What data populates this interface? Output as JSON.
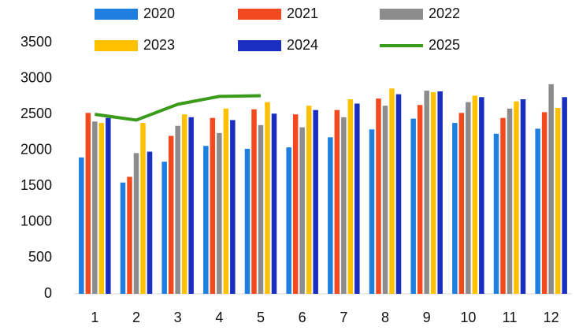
{
  "chart_data": {
    "type": "bar",
    "categories": [
      "1",
      "2",
      "3",
      "4",
      "5",
      "6",
      "7",
      "8",
      "9",
      "10",
      "11",
      "12"
    ],
    "series": [
      {
        "name": "2020",
        "color": "#1f7fe0",
        "values": [
          1900,
          1550,
          1840,
          2060,
          2020,
          2040,
          2180,
          2290,
          2440,
          2380,
          2230,
          2300
        ]
      },
      {
        "name": "2021",
        "color": "#f24a1e",
        "values": [
          2520,
          1630,
          2200,
          2450,
          2570,
          2500,
          2560,
          2720,
          2630,
          2520,
          2450,
          2530
        ]
      },
      {
        "name": "2022",
        "color": "#8c8c8c",
        "values": [
          2400,
          1960,
          2340,
          2240,
          2350,
          2320,
          2460,
          2620,
          2830,
          2670,
          2580,
          2920
        ]
      },
      {
        "name": "2023",
        "color": "#ffc000",
        "values": [
          2380,
          2380,
          2500,
          2580,
          2670,
          2620,
          2710,
          2860,
          2810,
          2760,
          2680,
          2590
        ]
      },
      {
        "name": "2024",
        "color": "#1a2fbf",
        "values": [
          2450,
          1980,
          2460,
          2420,
          2510,
          2560,
          2650,
          2780,
          2820,
          2740,
          2710,
          2740
        ]
      },
      {
        "name": "2025",
        "color": "#3a9a1a",
        "type": "line",
        "values": [
          2500,
          2420,
          2640,
          2750,
          2760,
          null,
          null,
          null,
          null,
          null,
          null,
          null
        ]
      }
    ],
    "ylim": [
      0,
      3500
    ],
    "yticks": [
      0,
      500,
      1000,
      1500,
      2000,
      2500,
      3000,
      3500
    ],
    "grid": false
  }
}
